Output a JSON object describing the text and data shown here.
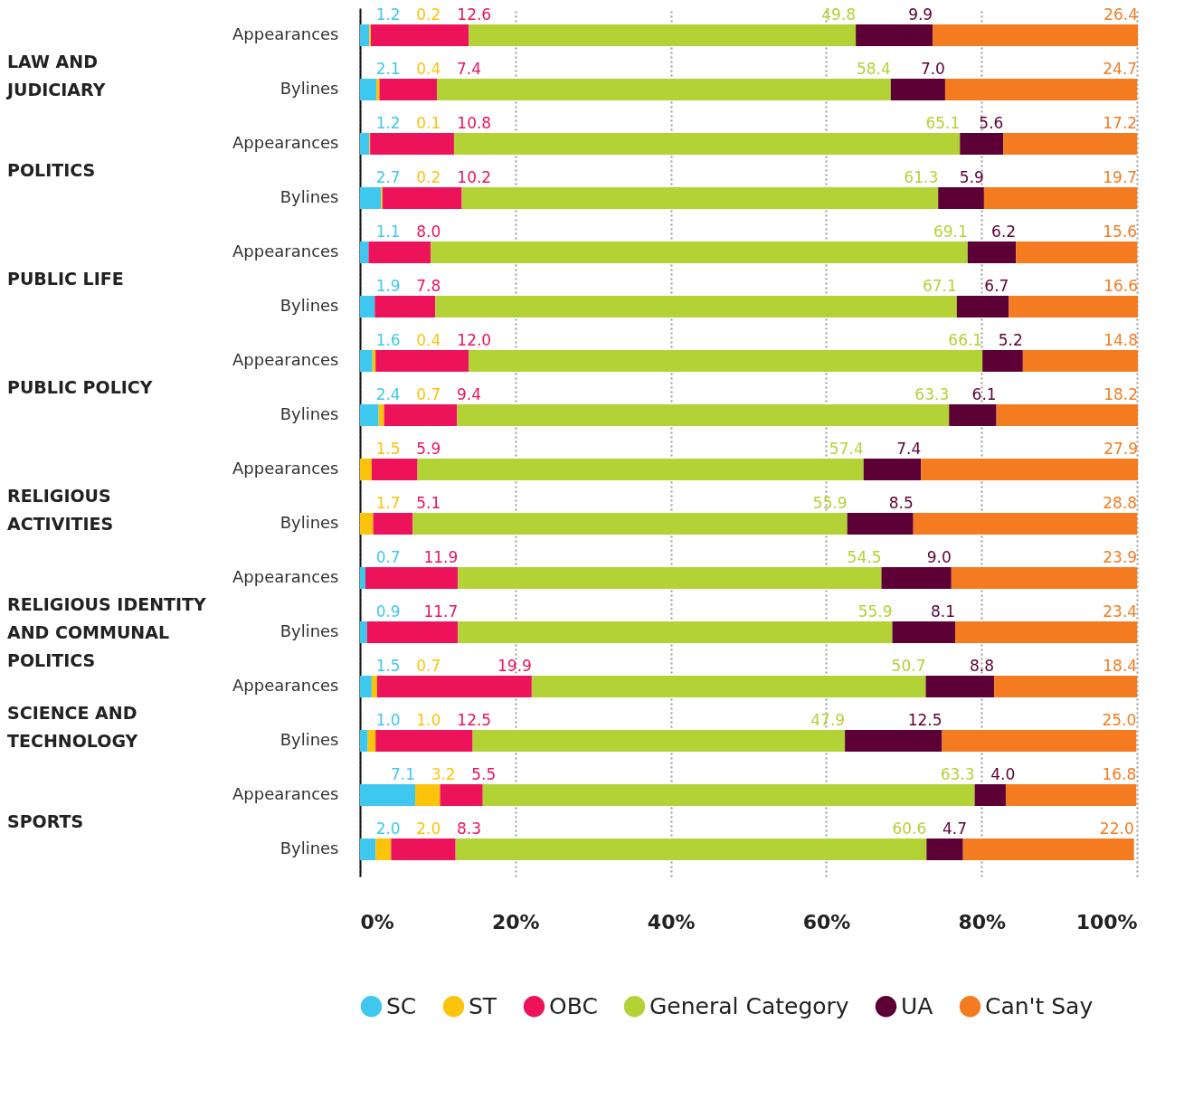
{
  "chart_data": {
    "type": "bar",
    "orientation": "horizontal",
    "stacked": true,
    "grid": "x",
    "legend": "bottom",
    "categories": [
      "Appearances",
      "Bylines",
      "Appearances",
      "Bylines",
      "Appearances",
      "Bylines",
      "Appearances",
      "Bylines",
      "Appearances",
      "Bylines",
      "Appearances",
      "Bylines",
      "Appearances",
      "Bylines",
      "Appearances",
      "Bylines"
    ],
    "annotations": [
      "LAW AND\nJUDICIARY",
      "POLITICS",
      "PUBLIC LIFE",
      "PUBLIC POLICY",
      "RELIGIOUS\nACTIVITIES",
      "RELIGIOUS IDENTITY\nAND COMMUNAL\nPOLITICS",
      "SCIENCE AND\nTECHNOLOGY",
      "SPORTS"
    ],
    "xlim": [
      0,
      100.1
    ],
    "xticks": [
      {
        "value": 0,
        "label": "0%"
      },
      {
        "value": 20,
        "label": "20%"
      },
      {
        "value": 40,
        "label": "40%"
      },
      {
        "value": 60,
        "label": "60%"
      },
      {
        "value": 80,
        "label": "80%"
      },
      {
        "value": 100,
        "label": "100%"
      }
    ],
    "series": [
      {
        "name": "SC",
        "color": "#3ec8ef",
        "values": [
          1.2,
          2.1,
          1.2,
          2.7,
          1.1,
          1.9,
          1.6,
          2.4,
          null,
          null,
          0.7,
          0.9,
          1.5,
          1.0,
          7.1,
          2.0
        ],
        "value_labels": [
          "1.2",
          "2.1",
          "1.2",
          "2.7",
          "1.1",
          "1.9",
          "1.6",
          "2.4",
          null,
          null,
          "0.7",
          "0.9",
          "1.5",
          "1.0",
          "7.1",
          "2.0"
        ]
      },
      {
        "name": "ST",
        "color": "#fcc30b",
        "values": [
          0.2,
          0.4,
          0.1,
          0.2,
          null,
          null,
          0.4,
          0.7,
          1.5,
          1.7,
          null,
          null,
          0.7,
          1.0,
          3.2,
          2.0
        ],
        "value_labels": [
          "0.2",
          "0.4",
          "0.1",
          "0.2",
          null,
          null,
          "0.4",
          "0.7",
          "1.5",
          "1.7",
          null,
          null,
          "0.7",
          "1.0",
          "3.2",
          "2.0"
        ]
      },
      {
        "name": "OBC",
        "color": "#ec135a",
        "values": [
          12.6,
          7.4,
          10.8,
          10.2,
          8.0,
          7.8,
          12.0,
          9.4,
          5.9,
          5.1,
          11.9,
          11.7,
          19.9,
          12.5,
          5.5,
          8.3
        ],
        "value_labels": [
          "12.6",
          "7.4",
          "10.8",
          "10.2",
          "8.0",
          "7.8",
          "12.0",
          "9.4",
          "5.9",
          "5.1",
          "11.9",
          "11.7",
          "19.9",
          "12.5",
          "5.5",
          "8.3"
        ]
      },
      {
        "name": "General Category",
        "color": "#b3d235",
        "values": [
          49.8,
          58.4,
          65.1,
          61.3,
          69.1,
          67.1,
          66.1,
          63.3,
          57.4,
          55.9,
          54.5,
          55.9,
          50.7,
          47.9,
          63.3,
          60.6
        ],
        "value_labels": [
          "49.8",
          "58.4",
          "65.1",
          "61.3",
          "69.1",
          "67.1",
          "66.1",
          "63.3",
          "57.4",
          "55.9",
          "54.5",
          "55.9",
          "50.7",
          "47.9",
          "63.3",
          "60.6"
        ]
      },
      {
        "name": "UA",
        "color": "#5c0035",
        "values": [
          9.9,
          7.0,
          5.6,
          5.9,
          6.2,
          6.7,
          5.2,
          6.1,
          7.4,
          8.5,
          9.0,
          8.1,
          8.8,
          12.5,
          4.0,
          4.7
        ],
        "value_labels": [
          "9.9",
          "7.0",
          "5.6",
          "5.9",
          "6.2",
          "6.7",
          "5.2",
          "6.1",
          "7.4",
          "8.5",
          "9.0",
          "8.1",
          "8.8",
          "12.5",
          "4.0",
          "4.7"
        ]
      },
      {
        "name": "Can't Say",
        "color": "#f47b20",
        "values": [
          26.4,
          24.7,
          17.2,
          19.7,
          15.6,
          16.6,
          14.8,
          18.2,
          27.9,
          28.8,
          23.9,
          23.4,
          18.4,
          25.0,
          16.8,
          22.0
        ],
        "value_labels": [
          "26.4",
          "24.7",
          "17.2",
          "19.7",
          "15.6",
          "16.6",
          "14.8",
          "18.2",
          "27.9",
          "28.8",
          "23.9",
          "23.4",
          "18.4",
          "25.0",
          "16.8",
          "22.0"
        ]
      }
    ]
  }
}
